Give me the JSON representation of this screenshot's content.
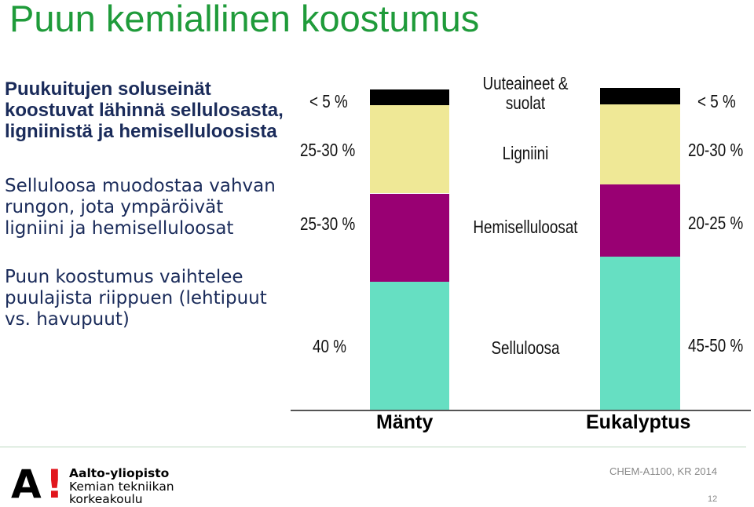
{
  "title": "Puun kemiallinen koostumus",
  "bullets": [
    "Puukuitujen soluseinät koostuvat lähinnä sellulosasta, ligniinistä ja hemiselluloosista",
    "Selluloosa muodostaa vahvan rungon, jota ympäröivät ligniini ja hemiselluloosat",
    "Puun koostumus vaihtelee puulajista riippuen (lehtipuut vs. havupuut)"
  ],
  "chart_data": {
    "type": "bar",
    "stacked": true,
    "categories": [
      "Mänty",
      "Eukalyptus"
    ],
    "components": [
      "Selluloosa",
      "Hemiselluloosat",
      "Ligniini",
      "Uuteaineet & suolat"
    ],
    "colors": {
      "Selluloosa": "#66dfc2",
      "Hemiselluloosat": "#990073",
      "Ligniini": "#efe896",
      "Uuteaineet & suolat": "#000000"
    },
    "series": [
      {
        "name": "Selluloosa",
        "values": [
          40,
          47.5
        ]
      },
      {
        "name": "Hemiselluloosat",
        "values": [
          27.5,
          22.5
        ]
      },
      {
        "name": "Ligniini",
        "values": [
          27.5,
          25
        ]
      },
      {
        "name": "Uuteaineet & suolat",
        "values": [
          5,
          5
        ]
      }
    ],
    "value_labels": {
      "Mänty": [
        "40 %",
        "25-30 %",
        "25-30 %",
        "< 5 %"
      ],
      "Eukalyptus": [
        "45-50 %",
        "20-25 %",
        "20-30 %",
        "< 5 %"
      ]
    },
    "ylim": [
      0,
      100
    ]
  },
  "footer": {
    "logo_mark": "A",
    "logo_excl": "!",
    "university": "Aalto-yliopisto",
    "school_line1": "Kemian tekniikan",
    "school_line2": "korkeakoulu",
    "course": "CHEM-A1100, KR 2014",
    "page": "12"
  }
}
